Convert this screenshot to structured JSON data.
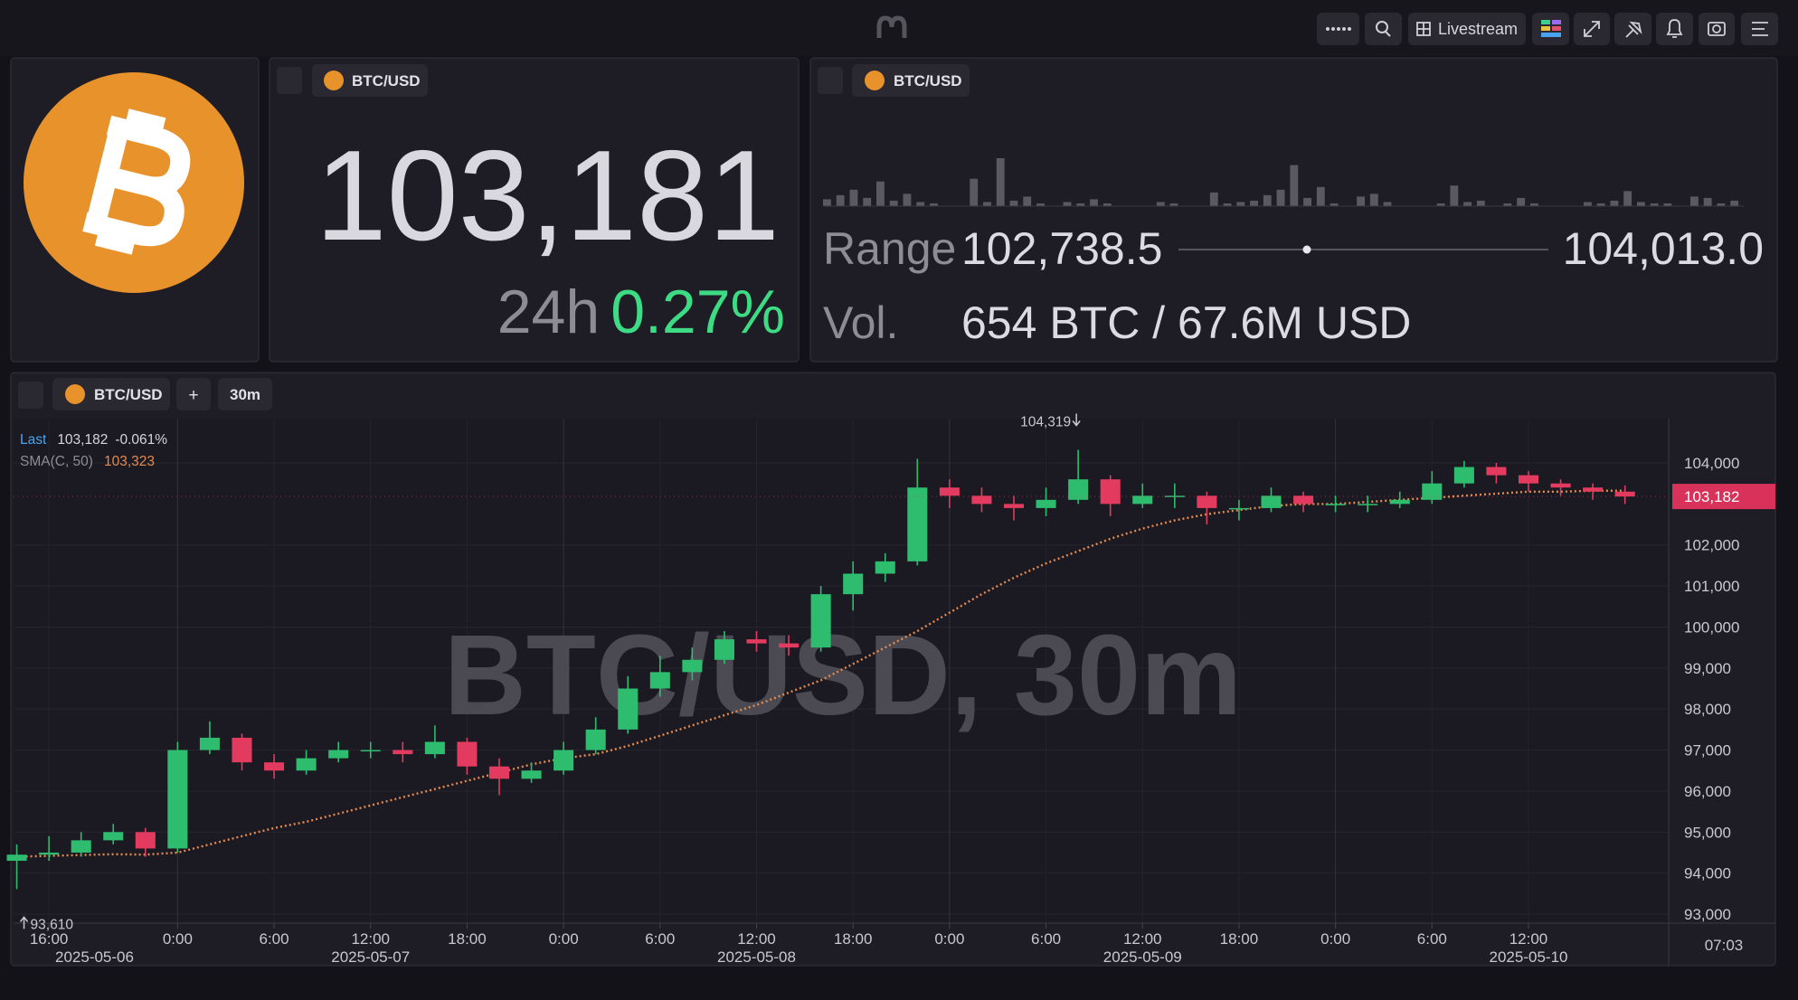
{
  "topbar": {
    "livestream": "Livestream"
  },
  "price_panel": {
    "pair": "BTC/USD",
    "price": {
      "value": 103181,
      "label": "103,181"
    },
    "change_period": "24h",
    "change": "0.27%"
  },
  "range_panel": {
    "pair": "BTC/USD",
    "range_label": "Range",
    "range_low": {
      "value": 102738.5,
      "label": "102,738.5"
    },
    "range_high": {
      "value": 104013.0,
      "label": "104,013.0"
    },
    "vol_label": "Vol.",
    "volume": "654 BTC / 67.6M USD",
    "volume_bars": [
      5,
      8,
      12,
      6,
      18,
      4,
      9,
      3,
      2,
      null,
      null,
      20,
      3,
      35,
      4,
      7,
      2,
      null,
      3,
      2,
      5,
      2,
      null,
      null,
      null,
      3,
      2,
      null,
      null,
      10,
      2,
      3,
      4,
      8,
      12,
      30,
      6,
      14,
      2,
      null,
      7,
      9,
      3,
      null,
      null,
      null,
      2,
      15,
      3,
      4,
      null,
      2,
      6,
      2,
      null,
      null,
      null,
      3,
      2,
      4,
      11,
      3,
      2,
      2,
      null,
      7,
      6,
      2,
      4
    ]
  },
  "chart_panel": {
    "pair": "BTC/USD",
    "add": "+",
    "interval": "30m",
    "watermark": "BTC/USD, 30m",
    "legend": {
      "last_label": "Last",
      "last_change": "-0.061%",
      "sma_value": "103,323"
    },
    "clock": "07:03"
  },
  "chart_data": {
    "type": "candlestick",
    "x": [
      "2025-05-06 14:00",
      "2025-05-06 16:00",
      "2025-05-06 18:00",
      "2025-05-06 20:00",
      "2025-05-06 22:00",
      "2025-05-07 00:00",
      "2025-05-07 02:00",
      "2025-05-07 04:00",
      "2025-05-07 06:00",
      "2025-05-07 08:00",
      "2025-05-07 10:00",
      "2025-05-07 12:00",
      "2025-05-07 14:00",
      "2025-05-07 16:00",
      "2025-05-07 18:00",
      "2025-05-07 20:00",
      "2025-05-07 22:00",
      "2025-05-08 00:00",
      "2025-05-08 02:00",
      "2025-05-08 04:00",
      "2025-05-08 06:00",
      "2025-05-08 08:00",
      "2025-05-08 10:00",
      "2025-05-08 12:00",
      "2025-05-08 14:00",
      "2025-05-08 16:00",
      "2025-05-08 18:00",
      "2025-05-08 20:00",
      "2025-05-08 22:00",
      "2025-05-09 00:00",
      "2025-05-09 02:00",
      "2025-05-09 04:00",
      "2025-05-09 06:00",
      "2025-05-09 08:00",
      "2025-05-09 10:00",
      "2025-05-09 12:00",
      "2025-05-09 14:00",
      "2025-05-09 16:00",
      "2025-05-09 18:00",
      "2025-05-09 20:00",
      "2025-05-09 22:00",
      "2025-05-10 00:00",
      "2025-05-10 02:00",
      "2025-05-10 04:00",
      "2025-05-10 06:00",
      "2025-05-10 08:00",
      "2025-05-10 10:00",
      "2025-05-10 12:00",
      "2025-05-10 14:00",
      "2025-05-10 16:00",
      "2025-05-10 18:00"
    ],
    "open": [
      94300,
      94450,
      94500,
      94800,
      95000,
      94600,
      97000,
      97300,
      96700,
      96500,
      96800,
      97000,
      97000,
      96900,
      97200,
      96600,
      96300,
      96500,
      97000,
      97500,
      98500,
      98900,
      99200,
      99700,
      99600,
      99500,
      100800,
      101300,
      101600,
      103400,
      103200,
      103000,
      102900,
      103100,
      103600,
      103000,
      103200,
      103200,
      102900,
      102900,
      103200,
      103000,
      103000,
      103000,
      103100,
      103500,
      103900,
      103700,
      103500,
      103400,
      103300
    ],
    "high": [
      94700,
      94900,
      95000,
      95200,
      95100,
      97200,
      97700,
      97400,
      96900,
      97000,
      97200,
      97200,
      97200,
      97600,
      97300,
      96800,
      96700,
      97200,
      97800,
      98800,
      99300,
      99500,
      99900,
      99900,
      99800,
      101000,
      101600,
      101800,
      104100,
      103600,
      103400,
      103200,
      103400,
      104319,
      103700,
      103500,
      103500,
      103300,
      103100,
      103400,
      103300,
      103200,
      103200,
      103300,
      103800,
      104050,
      104000,
      103800,
      103600,
      103500,
      103450
    ],
    "low": [
      93610,
      94300,
      94400,
      94700,
      94400,
      94500,
      96900,
      96500,
      96300,
      96400,
      96700,
      96800,
      96700,
      96800,
      96400,
      95900,
      96200,
      96400,
      96900,
      97400,
      98300,
      98700,
      99100,
      99400,
      99300,
      99400,
      100400,
      101100,
      101500,
      102900,
      102800,
      102600,
      102700,
      103000,
      102700,
      102900,
      102900,
      102500,
      102600,
      102800,
      102800,
      102800,
      102800,
      102900,
      103000,
      103400,
      103500,
      103300,
      103200,
      103100,
      103000
    ],
    "close": [
      94450,
      94500,
      94800,
      95000,
      94600,
      97000,
      97300,
      96700,
      96500,
      96800,
      97000,
      97000,
      96900,
      97200,
      96600,
      96300,
      96500,
      97000,
      97500,
      98500,
      98900,
      99200,
      99700,
      99600,
      99500,
      100800,
      101300,
      101600,
      103400,
      103200,
      103000,
      102900,
      103100,
      103600,
      103000,
      103200,
      103200,
      102900,
      102900,
      103200,
      103000,
      103000,
      103000,
      103100,
      103500,
      103900,
      103700,
      103500,
      103400,
      103300,
      103182
    ],
    "up_color": "#2ebd6e",
    "down_color": "#e23b5f",
    "sma": {
      "name": "SMA(C, 50)",
      "color": "#e58a4f",
      "values": [
        94400,
        94420,
        94440,
        94460,
        94450,
        94500,
        94700,
        94900,
        95100,
        95250,
        95450,
        95650,
        95850,
        96050,
        96250,
        96450,
        96650,
        96800,
        96900,
        97100,
        97350,
        97600,
        97850,
        98100,
        98400,
        98700,
        99100,
        99500,
        99900,
        100350,
        100800,
        101200,
        101550,
        101850,
        102150,
        102400,
        102600,
        102750,
        102850,
        102950,
        103000,
        103000,
        103050,
        103100,
        103150,
        103200,
        103250,
        103300,
        103300,
        103320,
        103323
      ]
    },
    "last_price": {
      "value": 103182,
      "label": "103,182"
    },
    "high_marker": {
      "value": 104319,
      "label": "104,319"
    },
    "low_marker": {
      "value": 93610,
      "label": "93,610"
    },
    "xlim": [
      "2025-05-06 13:48",
      "2025-05-10 20:43"
    ],
    "ylim": [
      92780,
      105080
    ],
    "yticks": [
      {
        "value": 93000,
        "label": "93,000"
      },
      {
        "value": 94000,
        "label": "94,000"
      },
      {
        "value": 95000,
        "label": "95,000"
      },
      {
        "value": 96000,
        "label": "96,000"
      },
      {
        "value": 97000,
        "label": "97,000"
      },
      {
        "value": 98000,
        "label": "98,000"
      },
      {
        "value": 99000,
        "label": "99,000"
      },
      {
        "value": 100000,
        "label": "100,000"
      },
      {
        "value": 101000,
        "label": "101,000"
      },
      {
        "value": 102000,
        "label": "102,000"
      },
      {
        "value": 104000,
        "label": "104,000"
      }
    ],
    "xticks": [
      {
        "value": "2025-05-06 16:00",
        "label": "16:00"
      },
      {
        "value": "2025-05-07 00:00",
        "label": "0:00"
      },
      {
        "value": "2025-05-07 06:00",
        "label": "6:00"
      },
      {
        "value": "2025-05-07 12:00",
        "label": "12:00"
      },
      {
        "value": "2025-05-07 18:00",
        "label": "18:00"
      },
      {
        "value": "2025-05-08 00:00",
        "label": "0:00"
      },
      {
        "value": "2025-05-08 06:00",
        "label": "6:00"
      },
      {
        "value": "2025-05-08 12:00",
        "label": "12:00"
      },
      {
        "value": "2025-05-08 18:00",
        "label": "18:00"
      },
      {
        "value": "2025-05-09 00:00",
        "label": "0:00"
      },
      {
        "value": "2025-05-09 06:00",
        "label": "6:00"
      },
      {
        "value": "2025-05-09 12:00",
        "label": "12:00"
      },
      {
        "value": "2025-05-09 18:00",
        "label": "18:00"
      },
      {
        "value": "2025-05-10 00:00",
        "label": "0:00"
      },
      {
        "value": "2025-05-10 06:00",
        "label": "6:00"
      },
      {
        "value": "2025-05-10 12:00",
        "label": "12:00"
      }
    ],
    "xdates": [
      {
        "value": "2025-05-06 18:50",
        "label": "2025-05-06"
      },
      {
        "value": "2025-05-07 12:00",
        "label": "2025-05-07"
      },
      {
        "value": "2025-05-08 12:00",
        "label": "2025-05-08"
      },
      {
        "value": "2025-05-09 12:00",
        "label": "2025-05-09"
      },
      {
        "value": "2025-05-10 12:00",
        "label": "2025-05-10"
      }
    ],
    "grid": true
  }
}
